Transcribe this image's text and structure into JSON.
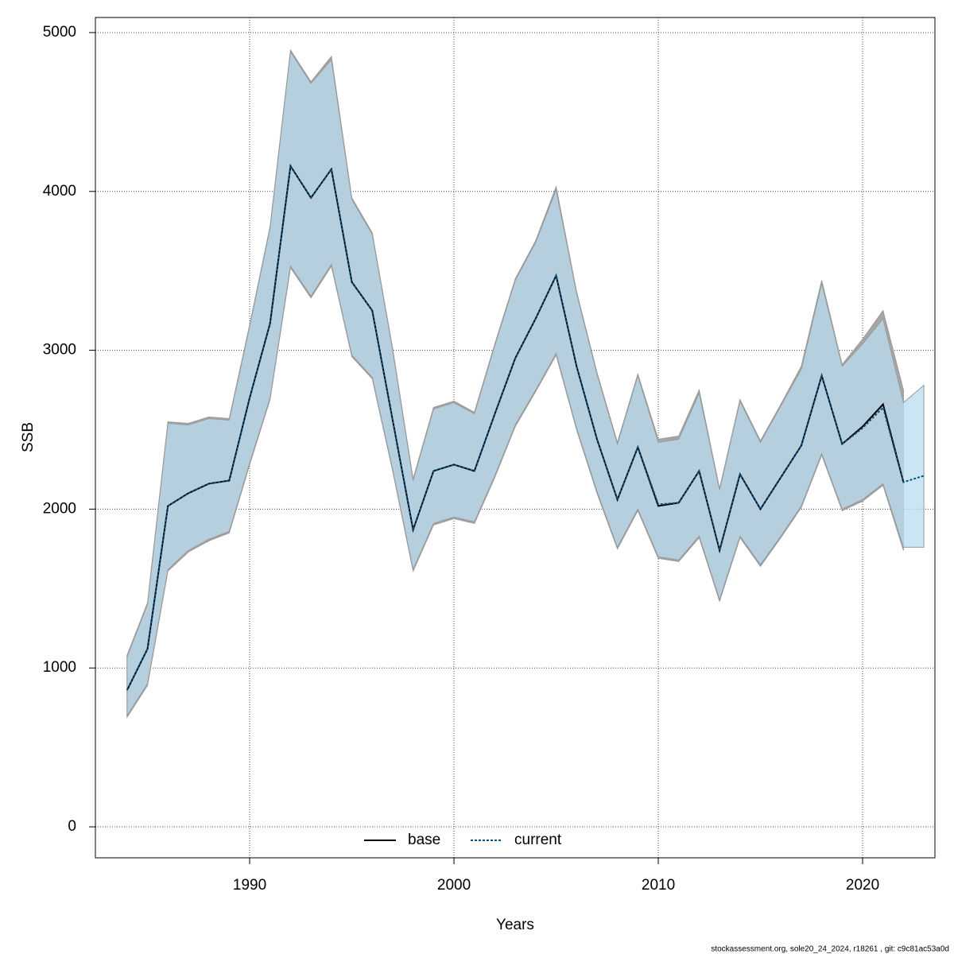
{
  "chart_data": {
    "type": "line",
    "xlabel": "Years",
    "ylabel": "SSB",
    "footnote": "stockassessment.org, sole20_24_2024, r18261 , git: c9c81ac53a0d",
    "x": [
      1984,
      1985,
      1986,
      1987,
      1988,
      1989,
      1990,
      1991,
      1992,
      1993,
      1994,
      1995,
      1996,
      1997,
      1998,
      1999,
      2000,
      2001,
      2002,
      2003,
      2004,
      2005,
      2006,
      2007,
      2008,
      2009,
      2010,
      2011,
      2012,
      2013,
      2014,
      2015,
      2016,
      2017,
      2018,
      2019,
      2020,
      2021,
      2022,
      2023
    ],
    "xlim": [
      1982.45,
      2023.54
    ],
    "xticks": [
      1990,
      2000,
      2010,
      2020
    ],
    "ylim": [
      -195,
      5095
    ],
    "yticks": [
      0,
      1000,
      2000,
      3000,
      4000,
      5000
    ],
    "grid": true,
    "legend": "bottom",
    "series": [
      {
        "name": "base",
        "color": "#000000",
        "band_color": "#a6a6a6",
        "dash": false,
        "values": [
          860,
          1120,
          2020,
          2100,
          2160,
          2180,
          2700,
          3170,
          4160,
          3960,
          4140,
          3430,
          3250,
          2560,
          1870,
          2240,
          2280,
          2240,
          2600,
          2950,
          3200,
          3470,
          2900,
          2440,
          2060,
          2390,
          2020,
          2040,
          2240,
          1740,
          2220,
          2000,
          2200,
          2400,
          2840,
          2410,
          2520,
          2660,
          2170,
          null
        ],
        "upper": [
          1080,
          1410,
          2550,
          2540,
          2580,
          2570,
          3160,
          3780,
          4890,
          4690,
          4850,
          3960,
          3740,
          3010,
          2190,
          2640,
          2680,
          2610,
          3040,
          3450,
          3690,
          4030,
          3370,
          2860,
          2420,
          2850,
          2440,
          2460,
          2750,
          2130,
          2690,
          2430,
          2660,
          2900,
          3440,
          2910,
          3070,
          3250,
          2750,
          null
        ],
        "lower": [
          690,
          890,
          1610,
          1730,
          1800,
          1850,
          2280,
          2690,
          3520,
          3330,
          3530,
          2960,
          2820,
          2240,
          1610,
          1900,
          1940,
          1910,
          2200,
          2520,
          2740,
          2970,
          2500,
          2100,
          1750,
          1990,
          1690,
          1670,
          1820,
          1420,
          1820,
          1640,
          1820,
          2010,
          2340,
          1990,
          2050,
          2150,
          1740,
          null
        ]
      },
      {
        "name": "current",
        "color": "#0b4f7c",
        "band_color": "#b9dcf2",
        "dash": true,
        "values": [
          860,
          1120,
          2020,
          2100,
          2160,
          2180,
          2700,
          3170,
          4160,
          3960,
          4140,
          3430,
          3250,
          2560,
          1870,
          2240,
          2280,
          2240,
          2600,
          2950,
          3200,
          3470,
          2900,
          2440,
          2060,
          2390,
          2030,
          2040,
          2240,
          1740,
          2220,
          2000,
          2200,
          2400,
          2840,
          2410,
          2510,
          2640,
          2170,
          2210
        ],
        "upper": [
          1070,
          1400,
          2540,
          2530,
          2570,
          2560,
          3150,
          3770,
          4880,
          4680,
          4830,
          3950,
          3730,
          3000,
          2180,
          2630,
          2670,
          2600,
          3030,
          3440,
          3680,
          4010,
          3360,
          2850,
          2410,
          2840,
          2420,
          2440,
          2730,
          2120,
          2680,
          2420,
          2650,
          2880,
          3420,
          2900,
          3040,
          3200,
          2670,
          2780
        ],
        "lower": [
          700,
          900,
          1620,
          1740,
          1810,
          1860,
          2290,
          2700,
          3530,
          3340,
          3540,
          2970,
          2830,
          2250,
          1620,
          1910,
          1950,
          1920,
          2210,
          2530,
          2750,
          2980,
          2510,
          2110,
          1760,
          2000,
          1700,
          1680,
          1830,
          1430,
          1830,
          1650,
          1830,
          2020,
          2350,
          2000,
          2060,
          2160,
          1760,
          1760
        ]
      }
    ]
  }
}
